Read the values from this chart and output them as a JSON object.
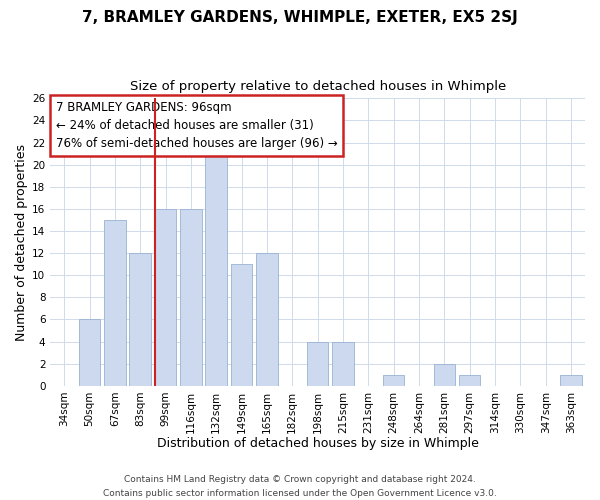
{
  "title": "7, BRAMLEY GARDENS, WHIMPLE, EXETER, EX5 2SJ",
  "subtitle": "Size of property relative to detached houses in Whimple",
  "xlabel": "Distribution of detached houses by size in Whimple",
  "ylabel": "Number of detached properties",
  "categories": [
    "34sqm",
    "50sqm",
    "67sqm",
    "83sqm",
    "99sqm",
    "116sqm",
    "132sqm",
    "149sqm",
    "165sqm",
    "182sqm",
    "198sqm",
    "215sqm",
    "231sqm",
    "248sqm",
    "264sqm",
    "281sqm",
    "297sqm",
    "314sqm",
    "330sqm",
    "347sqm",
    "363sqm"
  ],
  "values": [
    0,
    6,
    15,
    12,
    16,
    16,
    22,
    11,
    12,
    0,
    4,
    4,
    0,
    1,
    0,
    2,
    1,
    0,
    0,
    0,
    1
  ],
  "bar_color": "#ccd9ee",
  "bar_edge_color": "#99b3d4",
  "reference_line_color": "#cc2222",
  "reference_line_index": 4,
  "annotation_text": "7 BRAMLEY GARDENS: 96sqm\n← 24% of detached houses are smaller (31)\n76% of semi-detached houses are larger (96) →",
  "annotation_box_color": "#ffffff",
  "annotation_box_edge_color": "#cc2222",
  "ylim": [
    0,
    26
  ],
  "yticks": [
    0,
    2,
    4,
    6,
    8,
    10,
    12,
    14,
    16,
    18,
    20,
    22,
    24,
    26
  ],
  "footer_line1": "Contains HM Land Registry data © Crown copyright and database right 2024.",
  "footer_line2": "Contains public sector information licensed under the Open Government Licence v3.0.",
  "background_color": "#ffffff",
  "grid_color": "#d0daea",
  "title_fontsize": 11,
  "subtitle_fontsize": 9.5,
  "axis_label_fontsize": 9,
  "tick_fontsize": 7.5,
  "annotation_fontsize": 8.5,
  "footer_fontsize": 6.5
}
